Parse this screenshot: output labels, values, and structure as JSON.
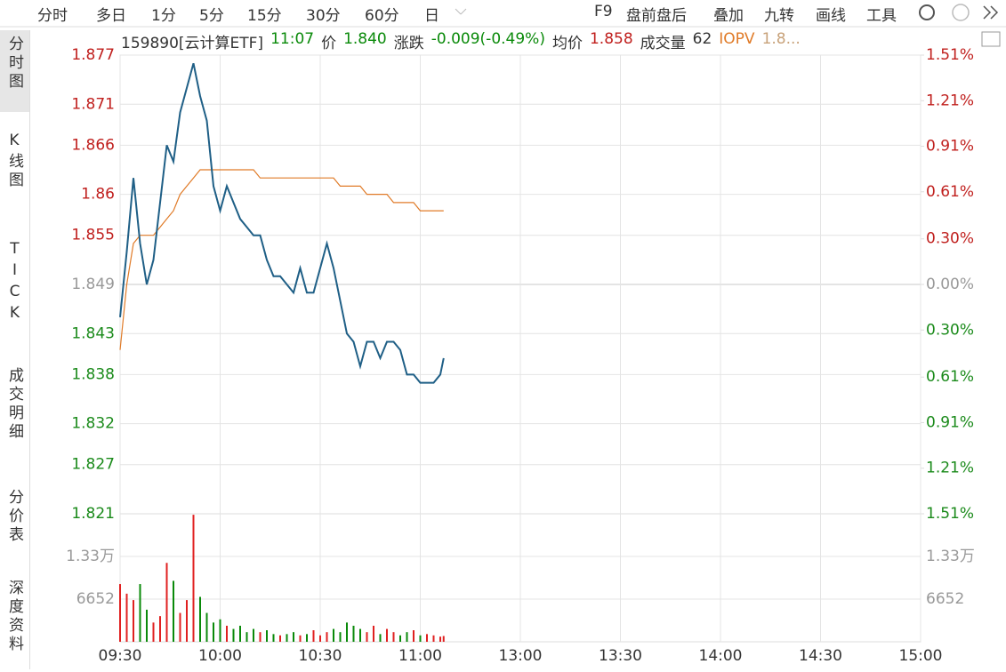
{
  "toolbar": {
    "left": [
      "分时",
      "多日",
      "1分",
      "5分",
      "15分",
      "30分",
      "60分",
      "日"
    ],
    "right": [
      "F9",
      "盘前盘后",
      "叠加",
      "九转",
      "画线",
      "工具"
    ]
  },
  "sidebar": [
    "分时图",
    "K线图",
    "TICK",
    "成交明细",
    "分价表",
    "深度资料"
  ],
  "info": {
    "code": "159890[云计算ETF]",
    "time": "11:07",
    "price_label": "价",
    "price": "1.840",
    "change_label": "涨跌",
    "change": "-0.009(-0.49%)",
    "avg_label": "均价",
    "avg": "1.858",
    "volume_label": "成交量",
    "volume": "62",
    "iopv_label": "IOPV",
    "iopv": "1.8..."
  },
  "chart_data": {
    "type": "line",
    "x": [
      "09:30",
      "09:32",
      "09:34",
      "09:36",
      "09:38",
      "09:40",
      "09:42",
      "09:44",
      "09:46",
      "09:48",
      "09:50",
      "09:52",
      "09:54",
      "09:56",
      "09:58",
      "10:00",
      "10:02",
      "10:04",
      "10:06",
      "10:08",
      "10:10",
      "10:12",
      "10:14",
      "10:16",
      "10:18",
      "10:20",
      "10:22",
      "10:24",
      "10:26",
      "10:28",
      "10:30",
      "10:32",
      "10:34",
      "10:36",
      "10:38",
      "10:40",
      "10:42",
      "10:44",
      "10:46",
      "10:48",
      "10:50",
      "10:52",
      "10:54",
      "10:56",
      "10:58",
      "11:00",
      "11:02",
      "11:04",
      "11:06",
      "11:07"
    ],
    "series": [
      {
        "color": "#1f5f86",
        "values": [
          1.845,
          1.853,
          1.862,
          1.854,
          1.849,
          1.852,
          1.859,
          1.866,
          1.864,
          1.87,
          1.873,
          1.876,
          1.872,
          1.869,
          1.861,
          1.858,
          1.861,
          1.859,
          1.857,
          1.856,
          1.855,
          1.855,
          1.852,
          1.85,
          1.85,
          1.849,
          1.848,
          1.851,
          1.848,
          1.848,
          1.851,
          1.854,
          1.851,
          1.847,
          1.843,
          1.842,
          1.839,
          1.842,
          1.842,
          1.84,
          1.842,
          1.842,
          1.841,
          1.838,
          1.838,
          1.837,
          1.837,
          1.837,
          1.838,
          1.84
        ]
      },
      {
        "color": "#e07b28",
        "values": [
          1.841,
          1.849,
          1.854,
          1.855,
          1.855,
          1.855,
          1.856,
          1.857,
          1.858,
          1.86,
          1.861,
          1.862,
          1.863,
          1.863,
          1.863,
          1.863,
          1.863,
          1.863,
          1.863,
          1.863,
          1.863,
          1.862,
          1.862,
          1.862,
          1.862,
          1.862,
          1.862,
          1.862,
          1.862,
          1.862,
          1.862,
          1.862,
          1.862,
          1.861,
          1.861,
          1.861,
          1.861,
          1.86,
          1.86,
          1.86,
          1.86,
          1.859,
          1.859,
          1.859,
          1.859,
          1.858,
          1.858,
          1.858,
          1.858,
          1.858
        ]
      }
    ],
    "ylim": [
      1.821,
      1.877
    ],
    "yticks": [
      1.877,
      1.871,
      1.866,
      1.86,
      1.855,
      1.849,
      1.843,
      1.838,
      1.832,
      1.827,
      1.821
    ],
    "y2lim": [
      -1.51,
      1.51
    ],
    "y2ticks": [
      {
        "value": 1.51,
        "label": "1.51%"
      },
      {
        "value": 1.21,
        "label": "1.21%"
      },
      {
        "value": 0.91,
        "label": "0.91%"
      },
      {
        "value": 0.61,
        "label": "0.61%"
      },
      {
        "value": 0.3,
        "label": "0.30%"
      },
      {
        "value": 0,
        "label": "0.00%"
      },
      {
        "value": -0.3,
        "label": "0.30%"
      },
      {
        "value": -0.61,
        "label": "0.61%"
      },
      {
        "value": -0.91,
        "label": "0.91%"
      },
      {
        "value": -1.21,
        "label": "1.21%"
      },
      {
        "value": -1.51,
        "label": "1.51%"
      }
    ],
    "xticks": [
      "09:30",
      "10:00",
      "10:30",
      "11:00",
      "13:00",
      "13:30",
      "14:00",
      "14:30",
      "15:00"
    ],
    "grid": true,
    "volume": {
      "values": [
        9000,
        7500,
        6500,
        9000,
        5000,
        3000,
        4000,
        12300,
        9500,
        4500,
        6500,
        19800,
        7000,
        4500,
        3000,
        3500,
        2500,
        2000,
        2500,
        1500,
        2000,
        1500,
        1800,
        1200,
        1000,
        1200,
        1500,
        1000,
        1200,
        1800,
        1000,
        1500,
        2000,
        1500,
        3000,
        2500,
        2000,
        1500,
        2500,
        1200,
        2000,
        1500,
        1000,
        1500,
        1800,
        1000,
        1200,
        1000,
        800,
        900
      ],
      "ylim": [
        0,
        19956
      ],
      "yticks": [
        {
          "value": 13300,
          "label": "1.33万"
        },
        6652
      ],
      "up_color": "#e02020",
      "down_color": "#0a8a0a"
    }
  }
}
